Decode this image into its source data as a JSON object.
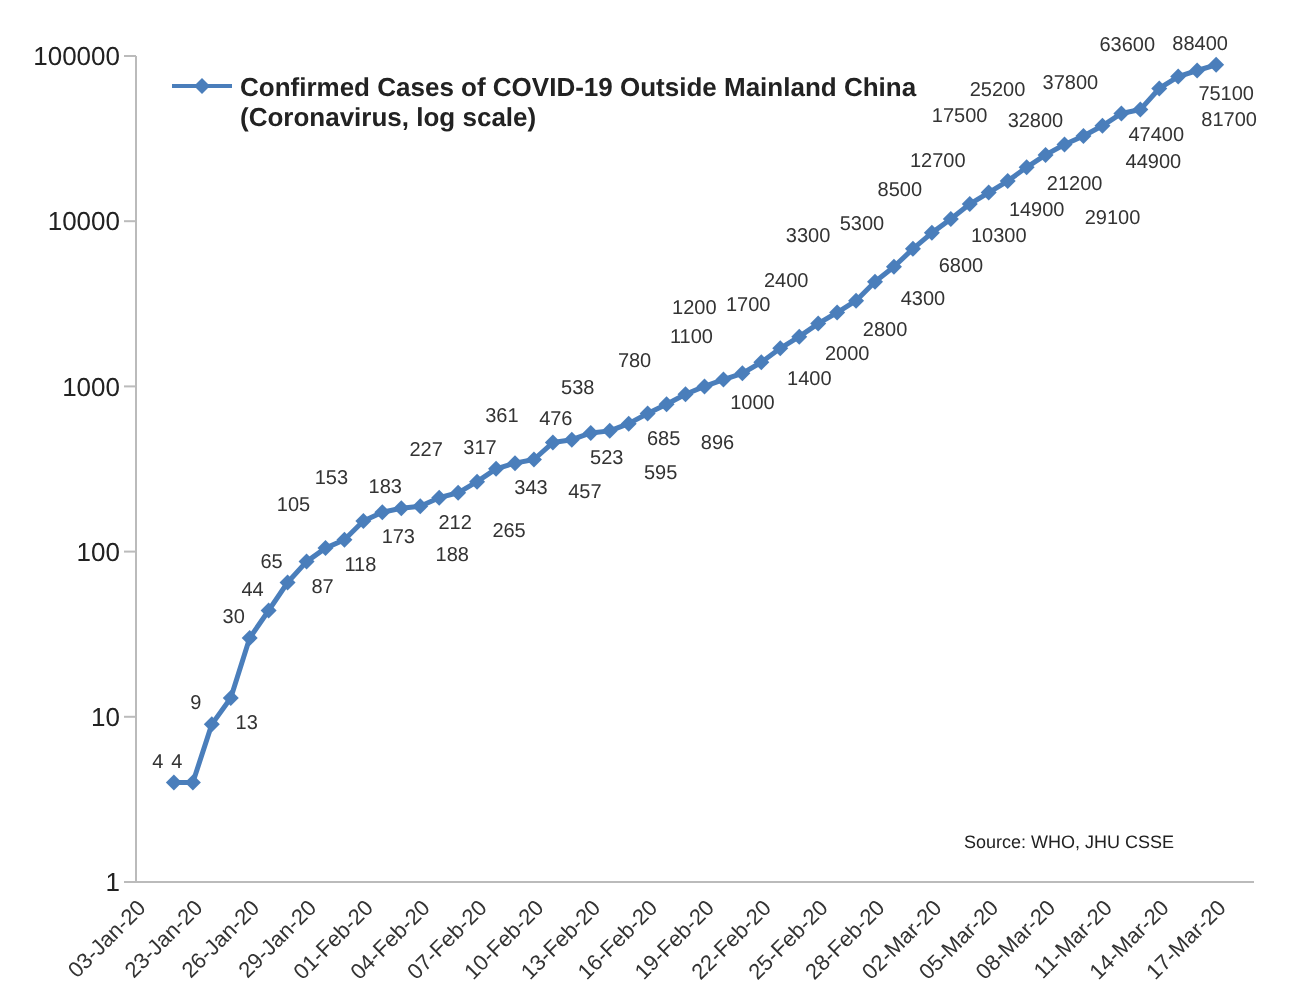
{
  "chart_data": {
    "type": "line",
    "categories": [
      "03-Jan-20",
      null,
      null,
      "23-Jan-20",
      null,
      null,
      "26-Jan-20",
      null,
      null,
      "29-Jan-20",
      null,
      null,
      "01-Feb-20",
      null,
      null,
      "04-Feb-20",
      null,
      null,
      "07-Feb-20",
      null,
      null,
      "10-Feb-20",
      null,
      null,
      "13-Feb-20",
      null,
      null,
      "16-Feb-20",
      null,
      null,
      "19-Feb-20",
      null,
      null,
      "22-Feb-20",
      null,
      null,
      "25-Feb-20",
      null,
      null,
      "28-Feb-20",
      null,
      null,
      "02-Mar-20",
      null,
      null,
      "05-Mar-20",
      null,
      null,
      "08-Mar-20",
      null,
      null,
      "11-Mar-20",
      null,
      null,
      "14-Mar-20",
      null,
      null,
      "17-Mar-20",
      null,
      null
    ],
    "series": [
      {
        "name": "Confirmed Cases of COVID-19 Outside Mainland China (Coronavirus, log scale)",
        "color": "#4a7ebb",
        "values": [
          null,
          null,
          4,
          4,
          9,
          13,
          30,
          44,
          65,
          87,
          105,
          118,
          153,
          173,
          183,
          188,
          212,
          227,
          265,
          317,
          343,
          361,
          457,
          476,
          523,
          538,
          595,
          685,
          780,
          896,
          1000,
          1100,
          1200,
          1400,
          1700,
          2000,
          2400,
          2800,
          3300,
          4300,
          5300,
          6800,
          8500,
          10300,
          12700,
          14900,
          17500,
          21200,
          25200,
          29100,
          32800,
          37800,
          44900,
          47400,
          63600,
          75100,
          81700,
          88400,
          null,
          null
        ]
      }
    ],
    "log": "y",
    "ylim": [
      1,
      100000
    ],
    "yticks": [
      1,
      10,
      100,
      1000,
      10000,
      100000
    ],
    "grid": false,
    "legend": "top left",
    "marker": "diamond",
    "line_style": "solid",
    "data_labels": true,
    "annotations": [
      "Source: WHO, JHU CSSE"
    ]
  }
}
